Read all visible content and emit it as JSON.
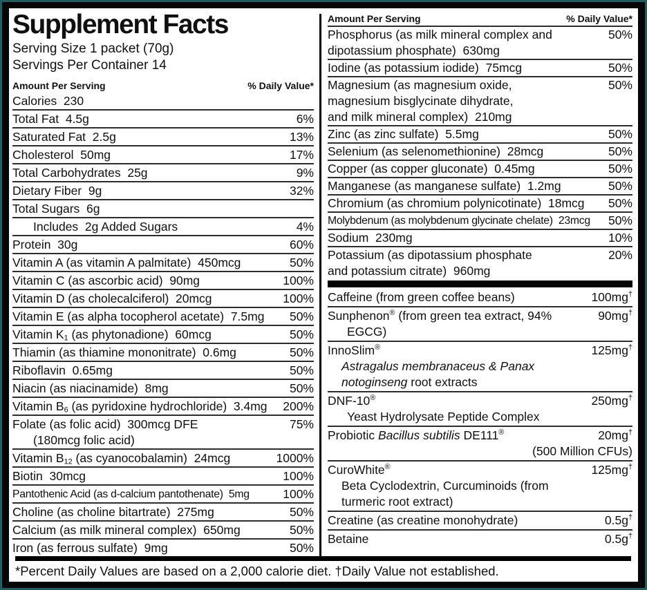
{
  "title": "Supplement Facts",
  "serving": {
    "size": "Serving Size 1 packet (70g)",
    "per_container": "Servings Per Container 14"
  },
  "col_header": {
    "amount": "Amount Per Serving",
    "daily_value": "% Daily Value*"
  },
  "footer": "*Percent Daily Values are based on a 2,000 calorie diet. †Daily Value not established.",
  "colors": {
    "frame_outer": "#1d5e5f",
    "frame_inner": "#060606",
    "separator": "#2c2c2c"
  },
  "left_rows": [
    {
      "label": [
        {
          "t": "Calories  230"
        }
      ],
      "value": []
    },
    {
      "label": [
        {
          "t": "Total Fat  4.5g"
        }
      ],
      "value": [
        {
          "t": "6%"
        }
      ]
    },
    {
      "label": [
        {
          "t": "Saturated Fat  2.5g"
        }
      ],
      "value": [
        {
          "t": "13%"
        }
      ]
    },
    {
      "label": [
        {
          "t": "Cholesterol  50mg"
        }
      ],
      "value": [
        {
          "t": "17%"
        }
      ]
    },
    {
      "label": [
        {
          "t": "Total Carbohydrates  25g"
        }
      ],
      "value": [
        {
          "t": "9%"
        }
      ]
    },
    {
      "label": [
        {
          "t": "Dietary Fiber  9g"
        }
      ],
      "value": [
        {
          "t": "32%"
        }
      ]
    },
    {
      "label": [
        {
          "t": "Total Sugars  6g"
        }
      ],
      "value": []
    },
    {
      "label": [
        {
          "t": "Includes  2g Added Sugars"
        }
      ],
      "value": [
        {
          "t": "4%"
        }
      ],
      "indent": 30
    },
    {
      "label": [
        {
          "t": "Protein  30g"
        }
      ],
      "value": [
        {
          "t": "60%"
        }
      ]
    },
    {
      "label": [
        {
          "t": "Vitamin A (as vitamin A palmitate)  450mcg"
        }
      ],
      "value": [
        {
          "t": "50%"
        }
      ]
    },
    {
      "label": [
        {
          "t": "Vitamin C (as ascorbic acid)  90mg"
        }
      ],
      "value": [
        {
          "t": "100%"
        }
      ]
    },
    {
      "label": [
        {
          "t": "Vitamin D (as cholecalciferol)  20mcg"
        }
      ],
      "value": [
        {
          "t": "100%"
        }
      ]
    },
    {
      "label": [
        {
          "t": "Vitamin E (as alpha tocopherol acetate)  7.5mg"
        }
      ],
      "value": [
        {
          "t": "50%"
        }
      ]
    },
    {
      "label": [
        {
          "t": "Vitamin K"
        },
        {
          "t": "1",
          "s": "sub"
        },
        {
          "t": " (as phytonadione)  60mcg"
        }
      ],
      "value": [
        {
          "t": "50%"
        }
      ]
    },
    {
      "label": [
        {
          "t": "Thiamin (as thiamine mononitrate)  0.6mg"
        }
      ],
      "value": [
        {
          "t": "50%"
        }
      ]
    },
    {
      "label": [
        {
          "t": "Riboflavin  0.65mg"
        }
      ],
      "value": [
        {
          "t": "50%"
        }
      ]
    },
    {
      "label": [
        {
          "t": "Niacin (as niacinamide)  8mg"
        }
      ],
      "value": [
        {
          "t": "50%"
        }
      ]
    },
    {
      "label": [
        {
          "t": "Vitamin B"
        },
        {
          "t": "6",
          "s": "sub"
        },
        {
          "t": " (as pyridoxine hydrochloride)  3.4mg"
        }
      ],
      "value": [
        {
          "t": "200%"
        }
      ]
    },
    {
      "label": [
        {
          "t": "Folate (as folic acid)  300mcg DFE"
        }
      ],
      "value": [
        {
          "t": "75%"
        }
      ],
      "extra": [
        {
          "parts": [
            {
              "t": "(180mcg folic acid)"
            }
          ],
          "indent": 30
        }
      ]
    },
    {
      "label": [
        {
          "t": "Vitamin B"
        },
        {
          "t": "12",
          "s": "sub"
        },
        {
          "t": " (as cyanocobalamin)  24mcg"
        }
      ],
      "value": [
        {
          "t": "1000%"
        }
      ]
    },
    {
      "label": [
        {
          "t": "Biotin  30mcg"
        }
      ],
      "value": [
        {
          "t": "100%"
        }
      ]
    },
    {
      "label": [
        {
          "t": "Pantothenic Acid (as d-calcium pantothenate)  5mg"
        }
      ],
      "value": [
        {
          "t": "100%"
        }
      ],
      "small": true
    },
    {
      "label": [
        {
          "t": "Choline (as choline bitartrate)  275mg"
        }
      ],
      "value": [
        {
          "t": "50%"
        }
      ]
    },
    {
      "label": [
        {
          "t": "Calcium (as milk mineral complex)  650mg"
        }
      ],
      "value": [
        {
          "t": "50%"
        }
      ]
    },
    {
      "label": [
        {
          "t": "Iron (as ferrous sulfate)  9mg"
        }
      ],
      "value": [
        {
          "t": "50%"
        }
      ]
    }
  ],
  "right_rows_minerals": [
    {
      "label": [
        {
          "t": "Phosphorus (as milk mineral complex and"
        }
      ],
      "value": [
        {
          "t": "50%"
        }
      ],
      "extra": [
        {
          "parts": [
            {
              "t": "dipotassium phosphate)  630mg"
            }
          ]
        }
      ]
    },
    {
      "label": [
        {
          "t": "Iodine (as potassium iodide)  75mcg"
        }
      ],
      "value": [
        {
          "t": "50%"
        }
      ]
    },
    {
      "label": [
        {
          "t": "Magnesium (as magnesium oxide,"
        }
      ],
      "value": [
        {
          "t": "50%"
        }
      ],
      "extra": [
        {
          "parts": [
            {
              "t": "magnesium bisglycinate dihydrate,"
            }
          ]
        },
        {
          "parts": [
            {
              "t": "and milk mineral complex)  210mg"
            }
          ]
        }
      ]
    },
    {
      "label": [
        {
          "t": "Zinc (as zinc sulfate)  5.5mg"
        }
      ],
      "value": [
        {
          "t": "50%"
        }
      ]
    },
    {
      "label": [
        {
          "t": "Selenium (as selenomethionine)  28mcg"
        }
      ],
      "value": [
        {
          "t": "50%"
        }
      ]
    },
    {
      "label": [
        {
          "t": "Copper (as copper gluconate)  0.45mg"
        }
      ],
      "value": [
        {
          "t": "50%"
        }
      ]
    },
    {
      "label": [
        {
          "t": "Manganese (as manganese sulfate)  1.2mg"
        }
      ],
      "value": [
        {
          "t": "50%"
        }
      ]
    },
    {
      "label": [
        {
          "t": "Chromium (as chromium polynicotinate)  18mcg"
        }
      ],
      "value": [
        {
          "t": "50%"
        }
      ]
    },
    {
      "label": [
        {
          "t": "Molybdenum (as molybdenum glycinate chelate)  23mcg"
        }
      ],
      "value": [
        {
          "t": "50%"
        }
      ],
      "small": true
    },
    {
      "label": [
        {
          "t": "Sodium  230mg"
        }
      ],
      "value": [
        {
          "t": "10%"
        }
      ]
    },
    {
      "label": [
        {
          "t": "Potassium (as dipotassium phosphate"
        }
      ],
      "value": [
        {
          "t": "20%"
        }
      ],
      "extra": [
        {
          "parts": [
            {
              "t": "and potassium citrate)  960mg"
            }
          ]
        }
      ]
    }
  ],
  "right_rows_other": [
    {
      "label": [
        {
          "t": "Caffeine (from green coffee beans)"
        }
      ],
      "value": [
        {
          "t": "100mg"
        },
        {
          "t": "†",
          "s": "sup"
        }
      ]
    },
    {
      "label": [
        {
          "t": "Sunphenon"
        },
        {
          "t": "®",
          "s": "sup"
        },
        {
          "t": " (from green tea extract, 94%"
        }
      ],
      "value": [
        {
          "t": "90mg"
        },
        {
          "t": "†",
          "s": "sup"
        }
      ],
      "extra": [
        {
          "parts": [
            {
              "t": "EGCG)"
            }
          ],
          "indent": 28
        }
      ]
    },
    {
      "label": [
        {
          "t": "InnoSlim"
        },
        {
          "t": "®",
          "s": "sup"
        }
      ],
      "value": [
        {
          "t": "125mg"
        },
        {
          "t": "†",
          "s": "sup"
        }
      ],
      "extra": [
        {
          "parts": [
            {
              "t": "Astragalus membranaceus & Panax",
              "s": "i"
            }
          ],
          "indent": 20
        },
        {
          "parts": [
            {
              "t": "notoginseng",
              "s": "i"
            },
            {
              "t": " root extracts"
            }
          ],
          "indent": 20
        }
      ]
    },
    {
      "label": [
        {
          "t": "DNF-10"
        },
        {
          "t": "®",
          "s": "sup"
        }
      ],
      "value": [
        {
          "t": "250mg"
        },
        {
          "t": "†",
          "s": "sup"
        }
      ],
      "extra": [
        {
          "parts": [
            {
              "t": "Yeast Hydrolysate Peptide Complex"
            }
          ],
          "indent": 28
        }
      ]
    },
    {
      "label": [
        {
          "t": "Probiotic "
        },
        {
          "t": "Bacillus subtilis",
          "s": "i"
        },
        {
          "t": " DE111"
        },
        {
          "t": "®",
          "s": "sup"
        }
      ],
      "value": [
        {
          "t": "20mg"
        },
        {
          "t": "†",
          "s": "sup"
        }
      ],
      "extra": [
        {
          "parts": [
            {
              "t": "(500 Million CFUs)"
            }
          ],
          "align": "right"
        }
      ]
    },
    {
      "label": [
        {
          "t": "CuroWhite"
        },
        {
          "t": "®",
          "s": "sup"
        }
      ],
      "value": [
        {
          "t": "125mg"
        },
        {
          "t": "†",
          "s": "sup"
        }
      ],
      "extra": [
        {
          "parts": [
            {
              "t": "Beta Cyclodextrin, Curcuminoids (from"
            }
          ],
          "indent": 20
        },
        {
          "parts": [
            {
              "t": "turmeric root extract)"
            }
          ],
          "indent": 20
        }
      ]
    },
    {
      "label": [
        {
          "t": "Creatine (as creatine monohydrate)"
        }
      ],
      "value": [
        {
          "t": "0.5g"
        },
        {
          "t": "†",
          "s": "sup"
        }
      ]
    },
    {
      "label": [
        {
          "t": "Betaine"
        }
      ],
      "value": [
        {
          "t": "0.5g"
        },
        {
          "t": "†",
          "s": "sup"
        }
      ]
    }
  ]
}
